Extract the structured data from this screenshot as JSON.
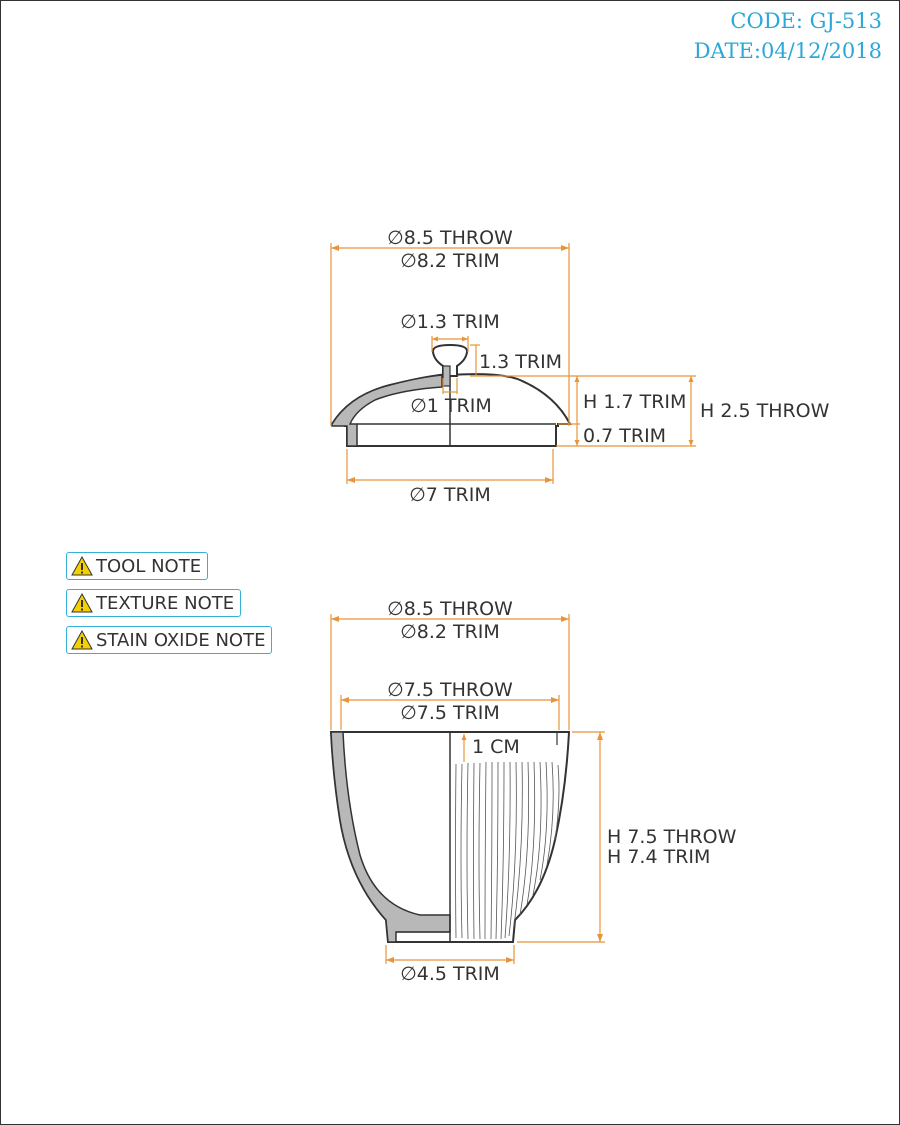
{
  "header": {
    "code": "CODE: GJ-513",
    "date": "DATE:04/12/2018"
  },
  "notes": [
    "TOOL NOTE",
    "TEXTURE NOTE",
    "STAIN OXIDE NOTE"
  ],
  "lid": {
    "dia_throw": "∅8.5 THROW",
    "dia_trim": "∅8.2 TRIM",
    "knob_dia": "∅1.3 TRIM",
    "knob_h": "1.3 TRIM",
    "stem_dia": "∅1 TRIM",
    "h_trim": "H 1.7 TRIM",
    "h_throw": "H 2.5 THROW",
    "flange_h": "0.7 TRIM",
    "flange_dia": "∅7 TRIM"
  },
  "cup": {
    "dia_throw": "∅8.5 THROW",
    "dia_trim": "∅8.2 TRIM",
    "inner_throw": "∅7.5 THROW",
    "inner_trim": "∅7.5 TRIM",
    "rim_band": "1 CM",
    "h_throw": "H 7.5 THROW",
    "h_trim": "H 7.4 TRIM",
    "foot_dia": "∅4.5 TRIM"
  },
  "colors": {
    "dimension": "#e8943a",
    "header": "#2aa8d9",
    "outline": "#333333",
    "section_fill": "#b8b8b8"
  }
}
